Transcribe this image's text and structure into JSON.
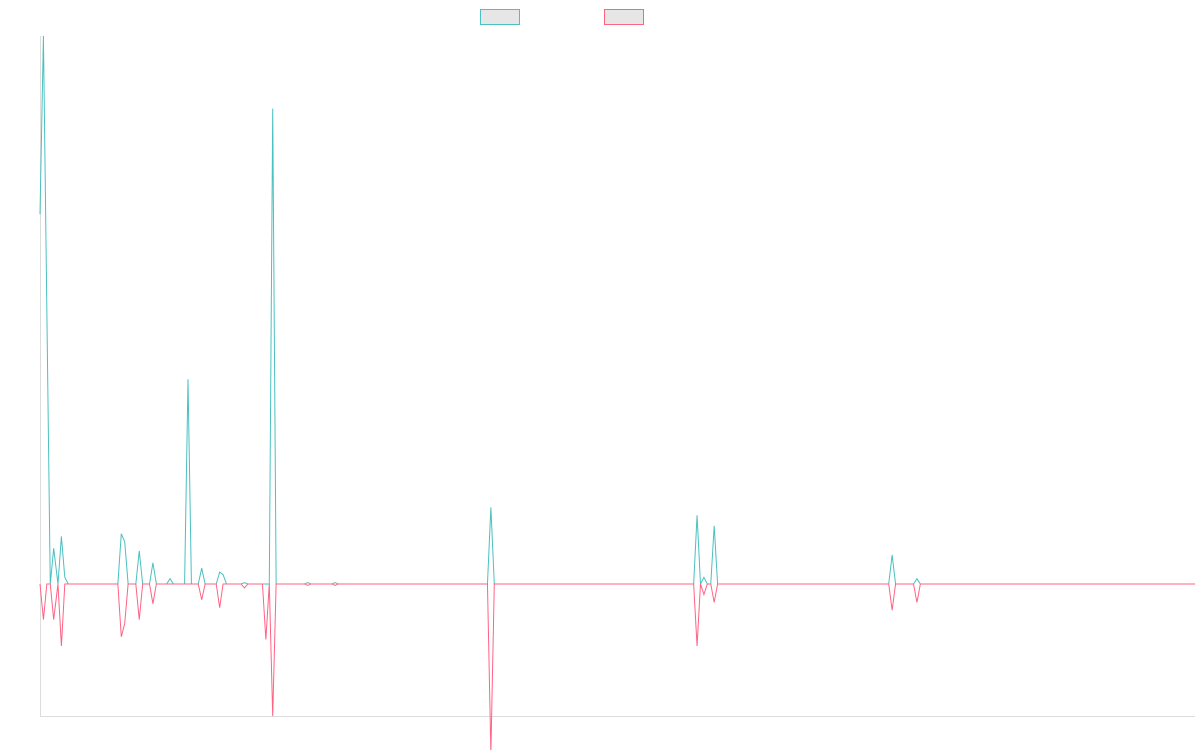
{
  "chart_data": {
    "type": "line",
    "title": "",
    "xlabel": "",
    "ylabel": "",
    "grid": false,
    "legend_position": "top-center",
    "x_count": 136,
    "xlim": [
      0,
      135
    ],
    "ylim": [
      -1.0,
      4.15
    ],
    "series": [
      {
        "name": "",
        "color": "#4bc0c0",
        "points": [
          [
            0,
            2.8
          ],
          [
            0.4,
            4.15
          ],
          [
            1.2,
            0
          ],
          [
            1.6,
            0.27
          ],
          [
            2.1,
            0
          ],
          [
            2.5,
            0.36
          ],
          [
            2.9,
            0.05
          ],
          [
            3.3,
            0
          ],
          [
            9.1,
            0
          ],
          [
            9.5,
            0.38
          ],
          [
            9.9,
            0.32
          ],
          [
            10.3,
            0
          ],
          [
            11.2,
            0
          ],
          [
            11.6,
            0.25
          ],
          [
            12.0,
            0
          ],
          [
            12.8,
            0
          ],
          [
            13.2,
            0.16
          ],
          [
            13.6,
            0
          ],
          [
            14.8,
            0
          ],
          [
            15.2,
            0.04
          ],
          [
            15.6,
            0
          ],
          [
            16.9,
            0
          ],
          [
            17.3,
            1.55
          ],
          [
            17.7,
            0
          ],
          [
            18.5,
            0
          ],
          [
            18.9,
            0.12
          ],
          [
            19.3,
            0
          ],
          [
            20.6,
            0
          ],
          [
            21.0,
            0.09
          ],
          [
            21.4,
            0.07
          ],
          [
            21.8,
            0
          ],
          [
            23.5,
            0
          ],
          [
            23.9,
            0.01
          ],
          [
            24.3,
            0
          ],
          [
            26.4,
            0
          ],
          [
            26.8,
            0
          ],
          [
            27.2,
            3.6
          ],
          [
            27.6,
            0
          ],
          [
            30.9,
            0
          ],
          [
            31.3,
            0.01
          ],
          [
            31.7,
            0
          ],
          [
            34.1,
            0
          ],
          [
            34.5,
            0.01
          ],
          [
            34.9,
            0
          ],
          [
            52.3,
            0
          ],
          [
            52.7,
            0.58
          ],
          [
            53.1,
            0
          ],
          [
            76.4,
            0
          ],
          [
            76.8,
            0.52
          ],
          [
            77.2,
            0
          ],
          [
            77.6,
            0.05
          ],
          [
            78.0,
            0
          ],
          [
            78.4,
            0
          ],
          [
            78.8,
            0.44
          ],
          [
            79.2,
            0
          ],
          [
            99.2,
            0
          ],
          [
            99.6,
            0.22
          ],
          [
            100.0,
            0
          ],
          [
            102.1,
            0
          ],
          [
            102.5,
            0.04
          ],
          [
            102.9,
            0
          ],
          [
            135,
            0
          ]
        ]
      },
      {
        "name": "",
        "color": "#ff6384",
        "points": [
          [
            0,
            0
          ],
          [
            0.4,
            -0.27
          ],
          [
            0.8,
            0
          ],
          [
            1.2,
            0
          ],
          [
            1.6,
            -0.27
          ],
          [
            2.1,
            0
          ],
          [
            2.5,
            -0.47
          ],
          [
            2.9,
            0
          ],
          [
            3.3,
            0
          ],
          [
            9.1,
            0
          ],
          [
            9.5,
            -0.4
          ],
          [
            9.9,
            -0.3
          ],
          [
            10.3,
            0
          ],
          [
            11.2,
            0
          ],
          [
            11.6,
            -0.27
          ],
          [
            12.0,
            0
          ],
          [
            12.8,
            0
          ],
          [
            13.2,
            -0.15
          ],
          [
            13.6,
            0
          ],
          [
            18.5,
            0
          ],
          [
            18.9,
            -0.12
          ],
          [
            19.3,
            0
          ],
          [
            20.6,
            0
          ],
          [
            21.0,
            -0.18
          ],
          [
            21.4,
            0
          ],
          [
            23.5,
            0
          ],
          [
            23.9,
            -0.03
          ],
          [
            24.3,
            0
          ],
          [
            26.0,
            0
          ],
          [
            26.4,
            -0.42
          ],
          [
            26.8,
            0
          ],
          [
            27.2,
            -1.0
          ],
          [
            27.6,
            0
          ],
          [
            30.9,
            0
          ],
          [
            31.3,
            -0.01
          ],
          [
            31.7,
            0
          ],
          [
            34.1,
            0
          ],
          [
            34.5,
            -0.01
          ],
          [
            34.9,
            0
          ],
          [
            52.3,
            0
          ],
          [
            52.7,
            -1.28
          ],
          [
            53.1,
            0
          ],
          [
            76.4,
            0
          ],
          [
            76.8,
            -0.47
          ],
          [
            77.2,
            0
          ],
          [
            77.6,
            -0.08
          ],
          [
            78.0,
            0
          ],
          [
            78.4,
            0
          ],
          [
            78.8,
            -0.14
          ],
          [
            79.2,
            0
          ],
          [
            99.2,
            0
          ],
          [
            99.6,
            -0.2
          ],
          [
            100.0,
            0
          ],
          [
            102.1,
            0
          ],
          [
            102.5,
            -0.14
          ],
          [
            102.9,
            0
          ],
          [
            135,
            0
          ]
        ]
      }
    ]
  }
}
